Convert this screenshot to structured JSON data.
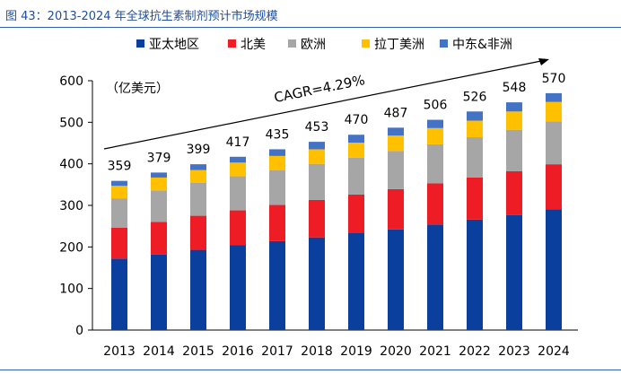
{
  "figure": {
    "caption": "图 43：2013-2024 年全球抗生素制剂预计市场规模"
  },
  "chart_data": {
    "type": "bar",
    "stacked": true,
    "title": "",
    "unit_label": "（亿美元）",
    "ylim": [
      0,
      600
    ],
    "yticks": [
      0,
      100,
      200,
      300,
      400,
      500,
      600
    ],
    "categories": [
      "2013",
      "2014",
      "2015",
      "2016",
      "2017",
      "2018",
      "2019",
      "2020",
      "2021",
      "2022",
      "2023",
      "2024"
    ],
    "totals": [
      359,
      379,
      399,
      417,
      435,
      453,
      470,
      487,
      506,
      526,
      548,
      570
    ],
    "series": [
      {
        "name": "亚太地区",
        "color": "#0b3f9e",
        "values": [
          172,
          182,
          193,
          204,
          214,
          223,
          234,
          242,
          254,
          266,
          277,
          291
        ]
      },
      {
        "name": "北美",
        "color": "#ee1c25",
        "values": [
          74,
          78,
          82,
          84,
          87,
          90,
          92,
          97,
          99,
          101,
          105,
          108
        ]
      },
      {
        "name": "欧洲",
        "color": "#a6a6a6",
        "values": [
          71,
          76,
          79,
          82,
          84,
          87,
          89,
          92,
          94,
          97,
          100,
          103
        ]
      },
      {
        "name": "拉丁美洲",
        "color": "#ffc000",
        "values": [
          30,
          31,
          31,
          33,
          34,
          35,
          36,
          37,
          39,
          40,
          44,
          47
        ]
      },
      {
        "name": "中东&非洲",
        "color": "#4472c4",
        "values": [
          12,
          12,
          14,
          14,
          16,
          18,
          19,
          19,
          20,
          22,
          22,
          21
        ]
      }
    ],
    "annotation": "CAGR=4.29%",
    "legend_position": "top",
    "grid": false
  }
}
